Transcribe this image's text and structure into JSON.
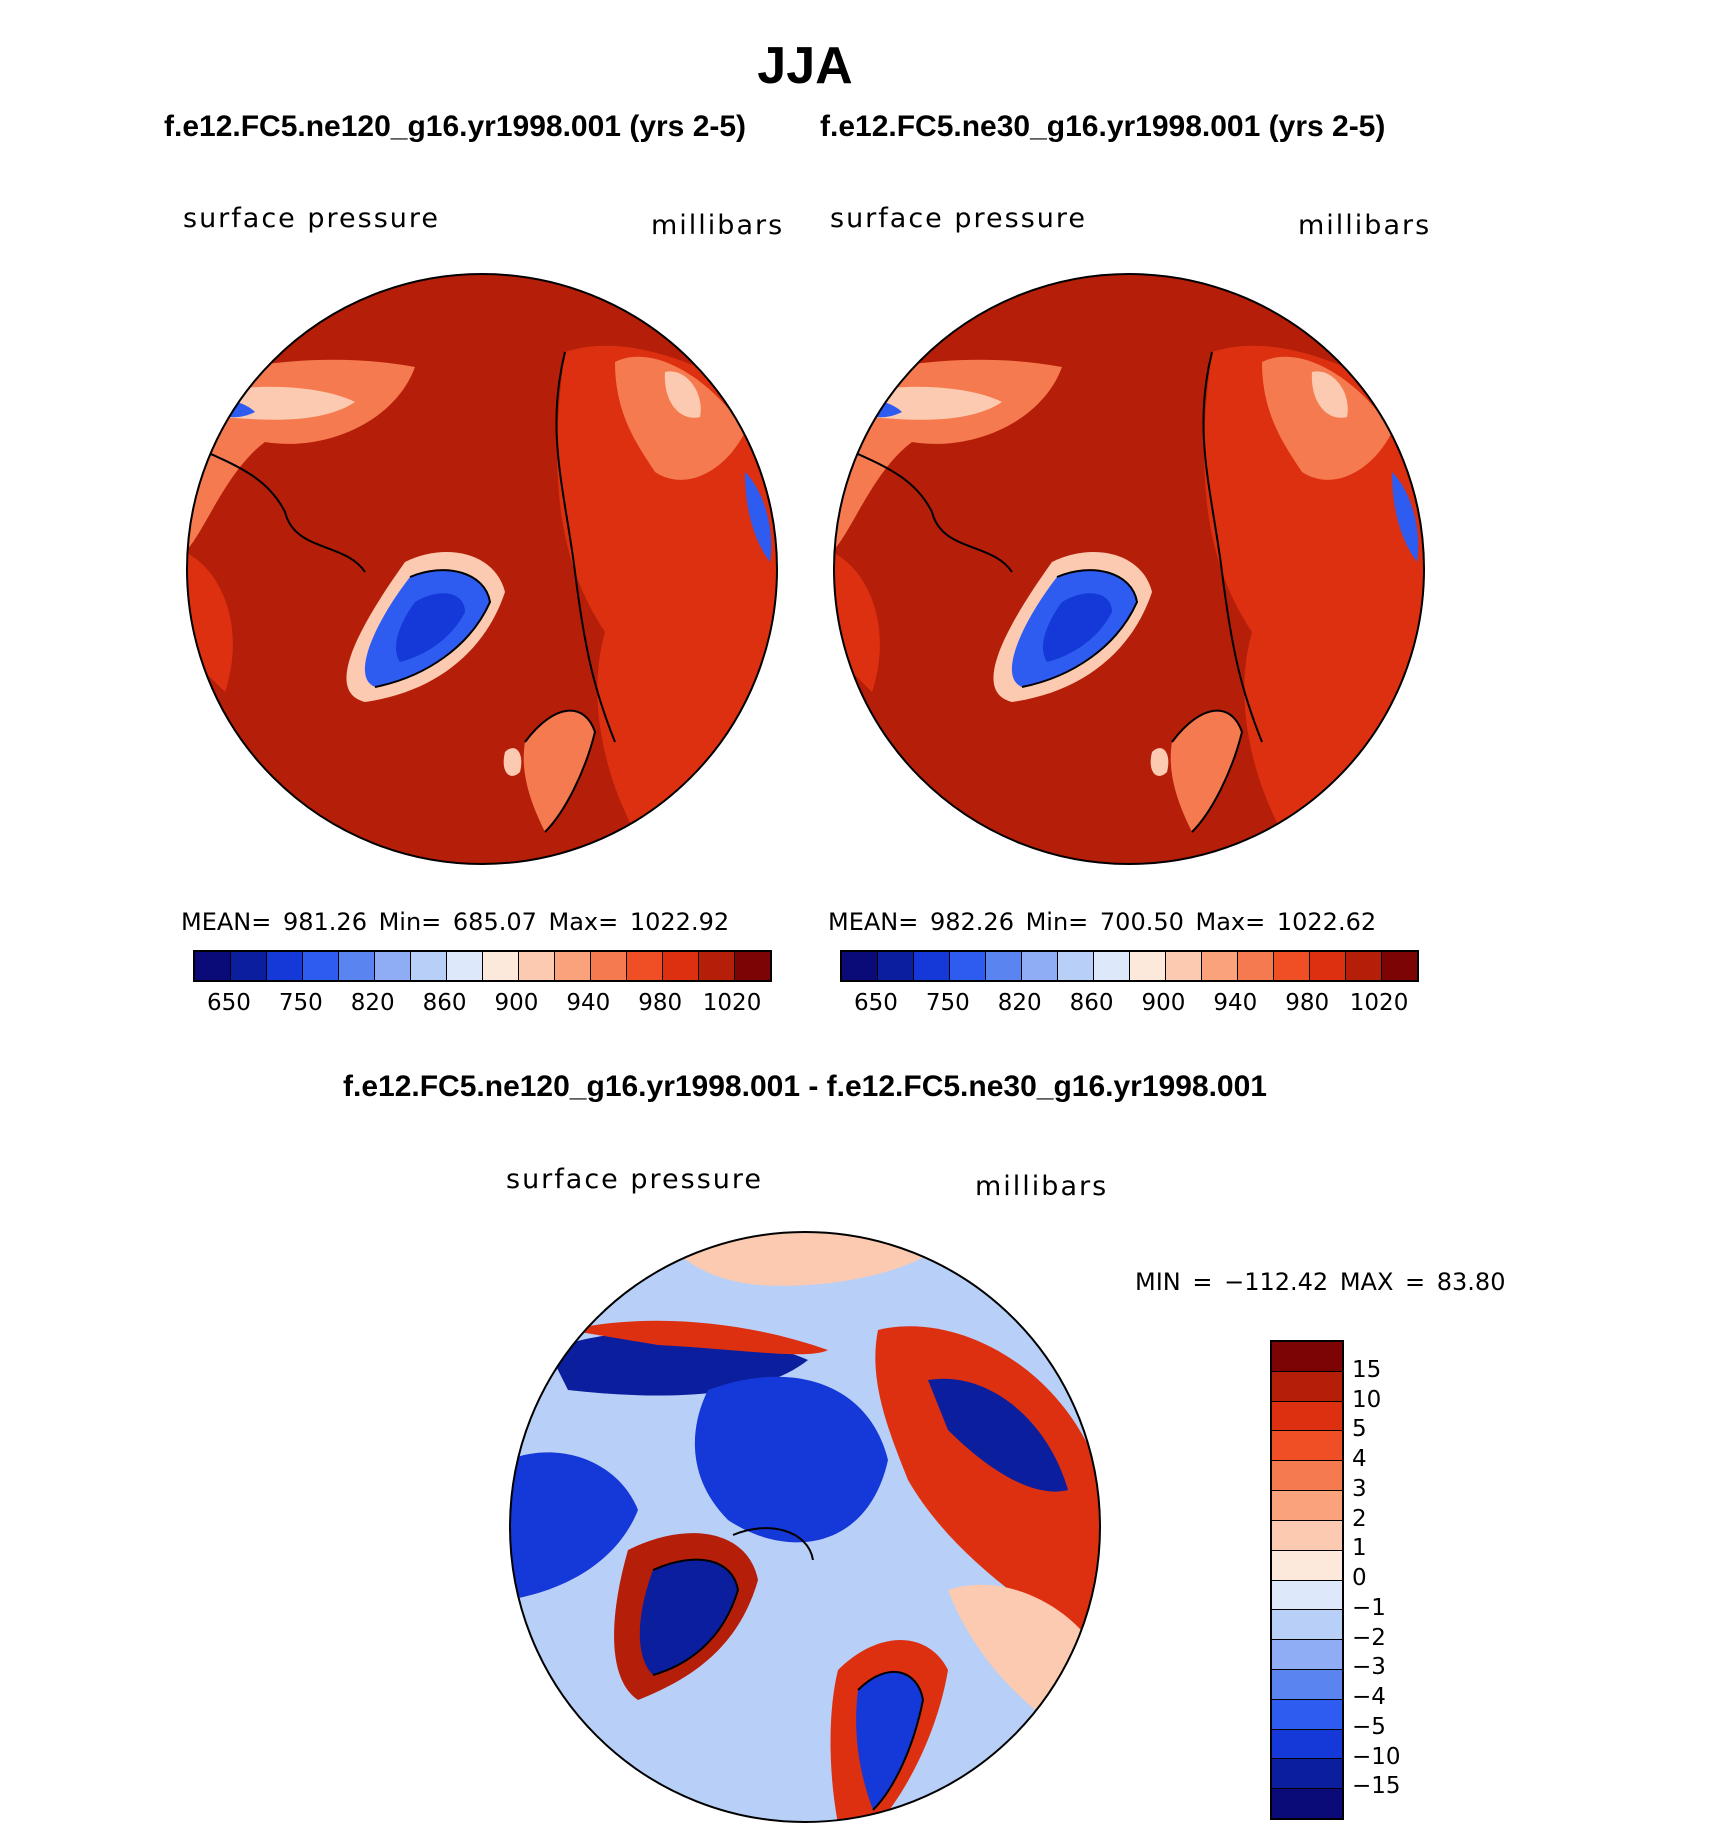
{
  "title": "JJA",
  "panels": [
    {
      "case": "f.e12.FC5.ne120_g16.yr1998.001 (yrs 2-5)",
      "variable": "surface pressure",
      "units": "millibars",
      "stats": "MEAN= 981.26   Min= 685.07   Max= 1022.92"
    },
    {
      "case": "f.e12.FC5.ne30_g16.yr1998.001 (yrs 2-5)",
      "variable": "surface pressure",
      "units": "millibars",
      "stats": "MEAN= 982.26   Min= 700.50   Max= 1022.62"
    }
  ],
  "difference": {
    "title": "f.e12.FC5.ne120_g16.yr1998.001 - f.e12.FC5.ne30_g16.yr1998.001",
    "variable": "surface pressure",
    "units": "millibars",
    "stats": "MIN = −112.42 MAX =   83.80"
  },
  "top_colorbar": {
    "colors": [
      "#0a0a78",
      "#0b1f9e",
      "#1538d8",
      "#2f5cf0",
      "#5a84f0",
      "#8fadf5",
      "#b8cff8",
      "#dde9fb",
      "#fde9dc",
      "#fbcab0",
      "#f9a27c",
      "#f57a4f",
      "#f04e24",
      "#dc3010",
      "#b51e08",
      "#7d0404"
    ],
    "labels": [
      "650",
      "750",
      "820",
      "860",
      "900",
      "940",
      "980",
      "1020"
    ]
  },
  "diff_colorbar": {
    "colors_top_to_bottom": [
      "#7d0404",
      "#b51e08",
      "#dc3010",
      "#f04e24",
      "#f57a4f",
      "#f9a27c",
      "#fbcab0",
      "#fde9dc",
      "#dde9fb",
      "#b8cff8",
      "#8fadf5",
      "#5a84f0",
      "#2f5cf0",
      "#1538d8",
      "#0b1f9e",
      "#0a0a78"
    ],
    "labels": [
      "15",
      "10",
      "5",
      "4",
      "3",
      "2",
      "1",
      "0",
      "−1",
      "−2",
      "−3",
      "−4",
      "−5",
      "−10",
      "−15"
    ]
  },
  "map_colors": {
    "ocean_high": "#b51e08",
    "land_high": "#dc3010",
    "land_mid": "#f57a4f",
    "land_low": "#fbcab0",
    "ice_low": "#2f5cf0",
    "ice_core": "#1538d8",
    "dark_corner": "#7d0404",
    "diff_blue": "#1538d8",
    "diff_light_blue": "#b8cff8",
    "diff_red": "#dc3010",
    "diff_dark_red": "#b51e08",
    "diff_pale_red": "#fbcab0",
    "diff_navy": "#0b1f9e",
    "coast": "#000000"
  }
}
